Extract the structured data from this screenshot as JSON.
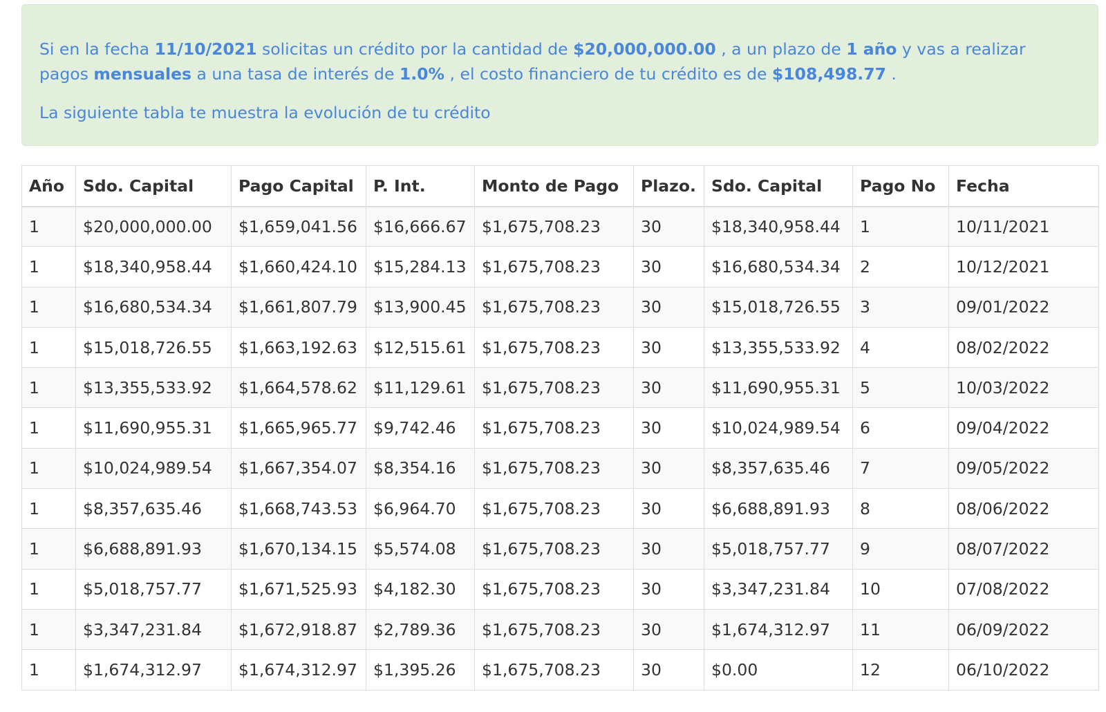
{
  "summary": {
    "t1": "Si en la fecha ",
    "date": "11/10/2021",
    "t2": " solicitas un crédito por la cantidad de ",
    "amount": "$20,000,000.00",
    "t3": " , a un plazo de ",
    "term": "1 año",
    "t4": " y vas a realizar",
    "t5": "pagos ",
    "frequency": "mensuales",
    "t6": " a una tasa de interés de ",
    "rate": "1.0%",
    "t7": " , el costo financiero de tu crédito es de ",
    "cost": "$108,498.77",
    "t8": " .",
    "table_intro": "La siguiente tabla te muestra la evolución de tu crédito"
  },
  "colors": {
    "alert_bg": "#e2efdc",
    "alert_text": "#4a86d9",
    "table_text": "#333333",
    "stripe": "#f9f9f9"
  },
  "table": {
    "headers": [
      "Año",
      "Sdo. Capital",
      "Pago Capital",
      "P. Int.",
      "Monto de Pago",
      "Plazo.",
      "Sdo. Capital",
      "Pago No",
      "Fecha"
    ],
    "rows": [
      [
        "1",
        "$20,000,000.00",
        "$1,659,041.56",
        "$16,666.67",
        "$1,675,708.23",
        "30",
        "$18,340,958.44",
        "1",
        "10/11/2021"
      ],
      [
        "1",
        "$18,340,958.44",
        "$1,660,424.10",
        "$15,284.13",
        "$1,675,708.23",
        "30",
        "$16,680,534.34",
        "2",
        "10/12/2021"
      ],
      [
        "1",
        "$16,680,534.34",
        "$1,661,807.79",
        "$13,900.45",
        "$1,675,708.23",
        "30",
        "$15,018,726.55",
        "3",
        "09/01/2022"
      ],
      [
        "1",
        "$15,018,726.55",
        "$1,663,192.63",
        "$12,515.61",
        "$1,675,708.23",
        "30",
        "$13,355,533.92",
        "4",
        "08/02/2022"
      ],
      [
        "1",
        "$13,355,533.92",
        "$1,664,578.62",
        "$11,129.61",
        "$1,675,708.23",
        "30",
        "$11,690,955.31",
        "5",
        "10/03/2022"
      ],
      [
        "1",
        "$11,690,955.31",
        "$1,665,965.77",
        "$9,742.46",
        "$1,675,708.23",
        "30",
        "$10,024,989.54",
        "6",
        "09/04/2022"
      ],
      [
        "1",
        "$10,024,989.54",
        "$1,667,354.07",
        "$8,354.16",
        "$1,675,708.23",
        "30",
        "$8,357,635.46",
        "7",
        "09/05/2022"
      ],
      [
        "1",
        "$8,357,635.46",
        "$1,668,743.53",
        "$6,964.70",
        "$1,675,708.23",
        "30",
        "$6,688,891.93",
        "8",
        "08/06/2022"
      ],
      [
        "1",
        "$6,688,891.93",
        "$1,670,134.15",
        "$5,574.08",
        "$1,675,708.23",
        "30",
        "$5,018,757.77",
        "9",
        "08/07/2022"
      ],
      [
        "1",
        "$5,018,757.77",
        "$1,671,525.93",
        "$4,182.30",
        "$1,675,708.23",
        "30",
        "$3,347,231.84",
        "10",
        "07/08/2022"
      ],
      [
        "1",
        "$3,347,231.84",
        "$1,672,918.87",
        "$2,789.36",
        "$1,675,708.23",
        "30",
        "$1,674,312.97",
        "11",
        "06/09/2022"
      ],
      [
        "1",
        "$1,674,312.97",
        "$1,674,312.97",
        "$1,395.26",
        "$1,675,708.23",
        "30",
        "$0.00",
        "12",
        "06/10/2022"
      ]
    ]
  }
}
